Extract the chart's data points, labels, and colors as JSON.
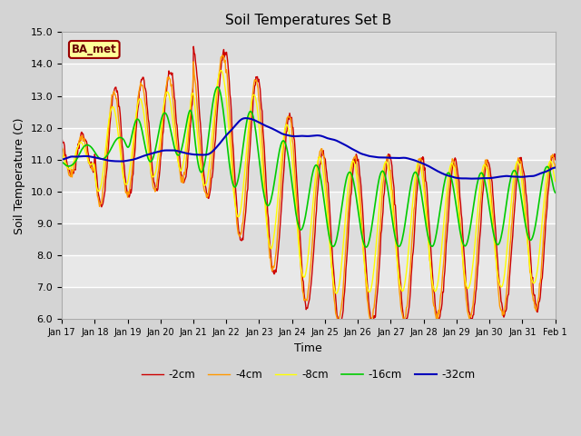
{
  "title": "Soil Temperatures Set B",
  "xlabel": "Time",
  "ylabel": "Soil Temperature (C)",
  "ylim": [
    6.0,
    15.0
  ],
  "yticks": [
    6.0,
    7.0,
    8.0,
    9.0,
    10.0,
    11.0,
    12.0,
    13.0,
    14.0,
    15.0
  ],
  "xtick_labels": [
    "Jan 17",
    "Jan 18",
    "Jan 19",
    "Jan 20",
    "Jan 21",
    "Jan 22",
    "Jan 23",
    "Jan 24",
    "Jan 25",
    "Jan 26",
    "Jan 27",
    "Jan 28",
    "Jan 29",
    "Jan 30",
    "Jan 31",
    "Feb 1"
  ],
  "series_colors": [
    "#cc0000",
    "#ff9900",
    "#ffff00",
    "#00cc00",
    "#0000bb"
  ],
  "series_labels": [
    "-2cm",
    "-4cm",
    "-8cm",
    "-16cm",
    "-32cm"
  ],
  "series_linewidths": [
    1.0,
    1.0,
    1.0,
    1.2,
    1.5
  ],
  "legend_label": "BA_met",
  "legend_bg": "#ffff99",
  "legend_border": "#990000",
  "plot_bg": "#e8e8e8",
  "grid_color": "#ffffff",
  "fig_bg": "#d4d4d4",
  "n_points": 720
}
